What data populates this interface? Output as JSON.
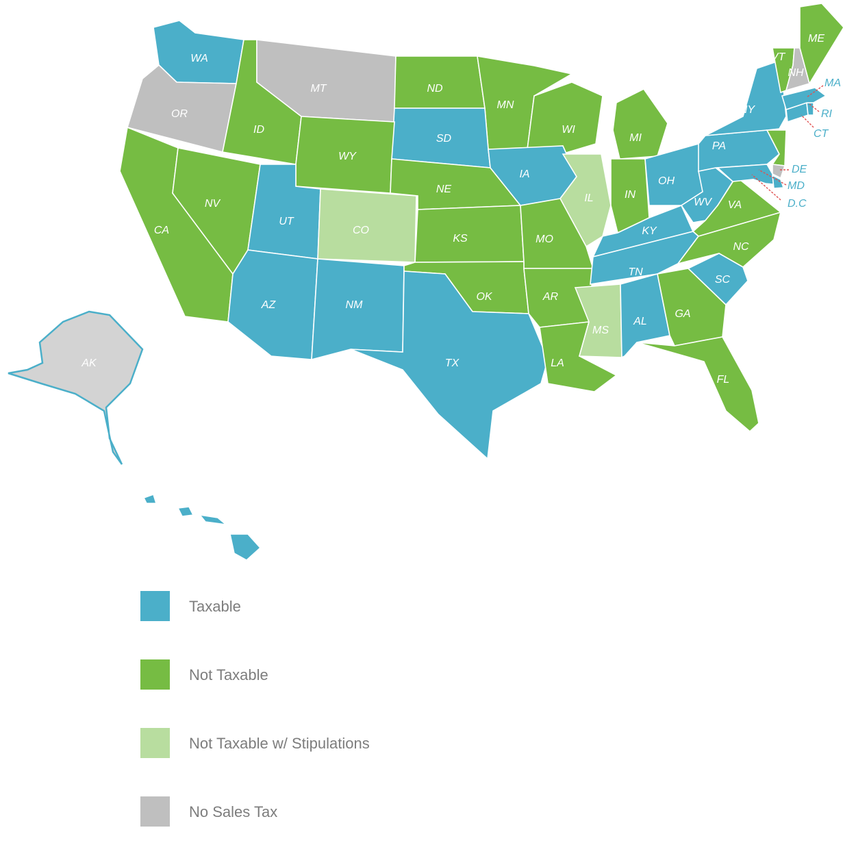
{
  "colors": {
    "taxable": "#4bafc9",
    "not_taxable": "#76bc43",
    "not_taxable_stipulations": "#b8dd9f",
    "no_sales_tax": "#bfbfbf",
    "alaska_fill": "#d3d3d3",
    "border": "#ffffff"
  },
  "legend": [
    {
      "key": "taxable",
      "label": "Taxable"
    },
    {
      "key": "not_taxable",
      "label": "Not Taxable"
    },
    {
      "key": "not_taxable_stipulations",
      "label": "Not Taxable w/ Stipulations"
    },
    {
      "key": "no_sales_tax",
      "label": "No Sales Tax"
    }
  ],
  "states": [
    {
      "code": "WA",
      "status": "taxable"
    },
    {
      "code": "OR",
      "status": "no_sales_tax"
    },
    {
      "code": "CA",
      "status": "not_taxable"
    },
    {
      "code": "NV",
      "status": "not_taxable"
    },
    {
      "code": "ID",
      "status": "not_taxable"
    },
    {
      "code": "MT",
      "status": "no_sales_tax"
    },
    {
      "code": "WY",
      "status": "not_taxable"
    },
    {
      "code": "UT",
      "status": "taxable"
    },
    {
      "code": "AZ",
      "status": "taxable"
    },
    {
      "code": "CO",
      "status": "not_taxable_stipulations"
    },
    {
      "code": "NM",
      "status": "taxable"
    },
    {
      "code": "ND",
      "status": "not_taxable"
    },
    {
      "code": "SD",
      "status": "taxable"
    },
    {
      "code": "NE",
      "status": "not_taxable"
    },
    {
      "code": "KS",
      "status": "not_taxable"
    },
    {
      "code": "OK",
      "status": "not_taxable"
    },
    {
      "code": "TX",
      "status": "taxable"
    },
    {
      "code": "MN",
      "status": "not_taxable"
    },
    {
      "code": "IA",
      "status": "taxable"
    },
    {
      "code": "MO",
      "status": "not_taxable"
    },
    {
      "code": "AR",
      "status": "not_taxable"
    },
    {
      "code": "LA",
      "status": "not_taxable"
    },
    {
      "code": "WI",
      "status": "not_taxable"
    },
    {
      "code": "IL",
      "status": "not_taxable_stipulations"
    },
    {
      "code": "MI",
      "status": "not_taxable"
    },
    {
      "code": "IN",
      "status": "not_taxable"
    },
    {
      "code": "OH",
      "status": "taxable"
    },
    {
      "code": "KY",
      "status": "taxable"
    },
    {
      "code": "TN",
      "status": "taxable"
    },
    {
      "code": "MS",
      "status": "not_taxable_stipulations"
    },
    {
      "code": "AL",
      "status": "taxable"
    },
    {
      "code": "GA",
      "status": "not_taxable"
    },
    {
      "code": "FL",
      "status": "not_taxable"
    },
    {
      "code": "SC",
      "status": "taxable"
    },
    {
      "code": "NC",
      "status": "not_taxable"
    },
    {
      "code": "VA",
      "status": "not_taxable"
    },
    {
      "code": "WV",
      "status": "taxable"
    },
    {
      "code": "PA",
      "status": "taxable"
    },
    {
      "code": "NY",
      "status": "taxable"
    },
    {
      "code": "NJ",
      "status": "not_taxable"
    },
    {
      "code": "VT",
      "status": "not_taxable"
    },
    {
      "code": "NH",
      "status": "no_sales_tax"
    },
    {
      "code": "ME",
      "status": "not_taxable"
    },
    {
      "code": "MA",
      "status": "taxable"
    },
    {
      "code": "RI",
      "status": "taxable"
    },
    {
      "code": "CT",
      "status": "taxable"
    },
    {
      "code": "DE",
      "status": "no_sales_tax"
    },
    {
      "code": "MD",
      "status": "taxable"
    },
    {
      "code": "D.C",
      "status": "taxable"
    },
    {
      "code": "AK",
      "status": "no_sales_tax"
    },
    {
      "code": "HI",
      "status": "taxable"
    }
  ]
}
